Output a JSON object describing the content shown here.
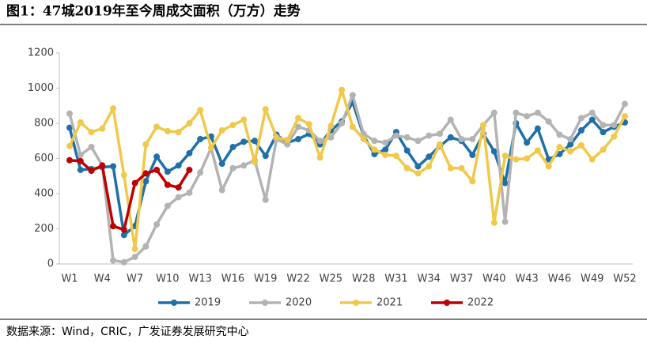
{
  "chart_data": {
    "type": "line",
    "title": "图1：47城2019年至今周成交面积（万方）走势",
    "source": "数据来源：Wind，CRIC，广发证券发展研究中心",
    "categories": [
      "W1",
      null,
      null,
      "W4",
      null,
      null,
      "W7",
      null,
      null,
      "W10",
      null,
      null,
      "W13",
      null,
      null,
      "W16",
      null,
      null,
      "W19",
      null,
      null,
      "W22",
      null,
      null,
      "W25",
      null,
      null,
      "W28",
      null,
      null,
      "W31",
      null,
      null,
      "W34",
      null,
      null,
      "W37",
      null,
      null,
      "W40",
      null,
      null,
      "W43",
      null,
      null,
      "W46",
      null,
      null,
      "W49",
      null,
      null,
      "W52"
    ],
    "ylim": [
      0,
      1200
    ],
    "yticks": [
      0,
      200,
      400,
      600,
      800,
      1000,
      1200
    ],
    "series": [
      {
        "name": "2019",
        "color": "#1f6fa8",
        "values": [
          775,
          535,
          540,
          550,
          555,
          165,
          215,
          470,
          610,
          525,
          560,
          630,
          710,
          725,
          570,
          665,
          695,
          700,
          615,
          735,
          690,
          710,
          740,
          680,
          760,
          810,
          920,
          730,
          625,
          650,
          750,
          645,
          555,
          610,
          670,
          720,
          700,
          620,
          740,
          640,
          460,
          800,
          690,
          770,
          595,
          625,
          680,
          760,
          820,
          750,
          780,
          805
        ]
      },
      {
        "name": "2020",
        "color": "#b3b3b3",
        "values": [
          855,
          620,
          665,
          560,
          20,
          10,
          40,
          100,
          225,
          330,
          380,
          405,
          520,
          660,
          420,
          545,
          560,
          590,
          365,
          710,
          680,
          780,
          760,
          700,
          720,
          800,
          960,
          740,
          700,
          690,
          730,
          720,
          700,
          730,
          740,
          820,
          710,
          710,
          790,
          860,
          240,
          860,
          840,
          860,
          810,
          735,
          710,
          830,
          860,
          790,
          790,
          910
        ]
      },
      {
        "name": "2021",
        "color": "#f0c94a",
        "values": [
          670,
          805,
          750,
          770,
          885,
          505,
          85,
          680,
          780,
          755,
          750,
          800,
          875,
          660,
          760,
          790,
          820,
          580,
          880,
          720,
          705,
          830,
          795,
          605,
          785,
          990,
          780,
          710,
          650,
          620,
          615,
          545,
          515,
          555,
          680,
          545,
          545,
          470,
          790,
          235,
          615,
          595,
          600,
          645,
          555,
          665,
          640,
          675,
          595,
          650,
          725,
          840
        ]
      },
      {
        "name": "2022",
        "color": "#c00000",
        "values": [
          590,
          585,
          530,
          560,
          215,
          195,
          460,
          515,
          535,
          450,
          435,
          535,
          null,
          null,
          null,
          null,
          null,
          null,
          null,
          null,
          null,
          null,
          null,
          null,
          null,
          null,
          null,
          null,
          null,
          null,
          null,
          null,
          null,
          null,
          null,
          null,
          null,
          null,
          null,
          null,
          null,
          null,
          null,
          null,
          null,
          null,
          null,
          null,
          null,
          null,
          null,
          null
        ]
      }
    ]
  }
}
